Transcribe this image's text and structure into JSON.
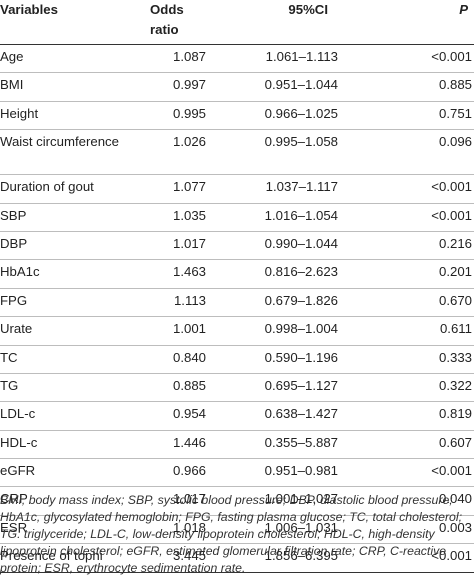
{
  "table": {
    "headers": {
      "variables": "Variables",
      "odds_ratio": "Odds ratio",
      "ci": "95%CI",
      "p": "P"
    },
    "rows": [
      {
        "variable": "Age",
        "or": "1.087",
        "ci": "1.061–1.113",
        "p": "<0.001"
      },
      {
        "variable": "BMI",
        "or": "0.997",
        "ci": "0.951–1.044",
        "p": "0.885"
      },
      {
        "variable": "Height",
        "or": "0.995",
        "ci": "0.966–1.025",
        "p": "0.751"
      },
      {
        "variable": "Waist circumference",
        "or": "1.026",
        "ci": "0.995–1.058",
        "p": "0.096"
      },
      {
        "variable": "Duration of gout",
        "or": "1.077",
        "ci": "1.037–1.117",
        "p": "<0.001"
      },
      {
        "variable": "SBP",
        "or": "1.035",
        "ci": "1.016–1.054",
        "p": "<0.001"
      },
      {
        "variable": "DBP",
        "or": "1.017",
        "ci": "0.990–1.044",
        "p": "0.216"
      },
      {
        "variable": "HbA1c",
        "or": "1.463",
        "ci": "0.816–2.623",
        "p": "0.201"
      },
      {
        "variable": "FPG",
        "or": "1.113",
        "ci": "0.679–1.826",
        "p": "0.670"
      },
      {
        "variable": "Urate",
        "or": "1.001",
        "ci": "0.998–1.004",
        "p": "0.611"
      },
      {
        "variable": "TC",
        "or": "0.840",
        "ci": "0.590–1.196",
        "p": "0.333"
      },
      {
        "variable": "TG",
        "or": "0.885",
        "ci": "0.695–1.127",
        "p": "0.322"
      },
      {
        "variable": "LDL-c",
        "or": "0.954",
        "ci": "0.638–1.427",
        "p": "0.819"
      },
      {
        "variable": "HDL-c",
        "or": "1.446",
        "ci": "0.355–5.887",
        "p": "0.607"
      },
      {
        "variable": "eGFR",
        "or": "0.966",
        "ci": "0.951–0.981",
        "p": "<0.001"
      },
      {
        "variable": "CRP",
        "or": "1.017",
        "ci": "1.001–1.027",
        "p": "0.040"
      },
      {
        "variable": "ESR",
        "or": "1.018",
        "ci": "1.006–1.031",
        "p": "0.003"
      },
      {
        "variable": "Presence of tophi",
        "or": "3.445",
        "ci": "1.856–6.395",
        "p": "<0.001"
      }
    ]
  },
  "footnote": "BMI, body mass index; SBP, systolic blood pressure; DBP, diastolic blood pressure; HbA1c, glycosylated hemoglobin; FPG, fasting plasma glucose; TC, total cholesterol; TG: triglyceride; LDL-C, low-density lipoprotein cholesterol; HDL-C, high-density lipoprotein cholesterol; eGFR, estimated glomerular filtration rate; CRP, C-reactive protein; ESR, erythrocyte sedimentation rate."
}
